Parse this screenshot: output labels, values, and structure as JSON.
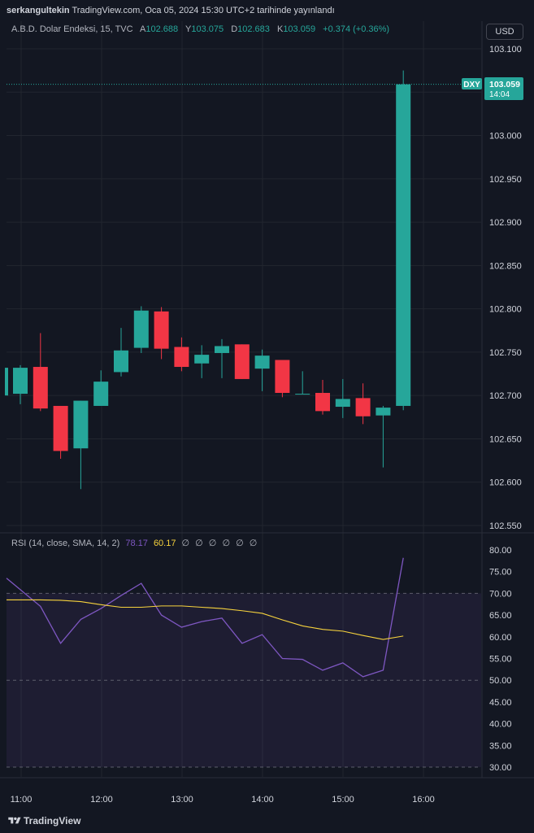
{
  "header": {
    "author": "serkangultekin",
    "text": "TradingView.com, Oca 05, 2024 15:30 UTC+2 tarihinde yayınlandı"
  },
  "legend": {
    "symbol": "A.B.D. Dolar Endeksi, 15, TVC",
    "o_label": "A",
    "o_value": "102.688",
    "h_label": "Y",
    "h_value": "103.075",
    "l_label": "D",
    "l_value": "102.683",
    "c_label": "K",
    "c_value": "103.059",
    "change": "+0.374 (+0.36%)"
  },
  "currency_button": "USD",
  "price_tag": {
    "ticker": "DXY",
    "price": "103.059",
    "countdown": "14:04"
  },
  "rsi_legend": {
    "label": "RSI (14, close, SMA, 14, 2)",
    "rsi_value": "78.17",
    "sma_value": "60.17",
    "na_values": "∅ ∅ ∅ ∅ ∅ ∅"
  },
  "footer": {
    "brand": "TradingView"
  },
  "colors": {
    "up": "#26a69a",
    "down": "#f23645",
    "rsi": "#7e57c2",
    "sma": "#f7d33d",
    "background": "#131722",
    "grid": "#22262f"
  },
  "chart_data": {
    "type": "candlestick",
    "price_ticks": [
      "102.550",
      "102.600",
      "102.650",
      "102.700",
      "102.750",
      "102.800",
      "102.850",
      "102.900",
      "102.950",
      "103.000",
      "103.050",
      "103.100"
    ],
    "price_range": [
      102.545,
      103.11
    ],
    "time_ticks": [
      "11:00",
      "12:00",
      "13:00",
      "14:00",
      "15:00",
      "16:00"
    ],
    "candles": [
      {
        "o": 102.702,
        "h": 102.735,
        "l": 102.69,
        "c": 102.732
      },
      {
        "o": 102.733,
        "h": 102.772,
        "l": 102.682,
        "c": 102.685
      },
      {
        "o": 102.688,
        "h": 102.688,
        "l": 102.627,
        "c": 102.636
      },
      {
        "o": 102.639,
        "h": 102.694,
        "l": 102.592,
        "c": 102.694
      },
      {
        "o": 102.688,
        "h": 102.729,
        "l": 102.688,
        "c": 102.716
      },
      {
        "o": 102.727,
        "h": 102.778,
        "l": 102.722,
        "c": 102.752
      },
      {
        "o": 102.755,
        "h": 102.803,
        "l": 102.749,
        "c": 102.798
      },
      {
        "o": 102.797,
        "h": 102.802,
        "l": 102.742,
        "c": 102.754
      },
      {
        "o": 102.756,
        "h": 102.767,
        "l": 102.728,
        "c": 102.733
      },
      {
        "o": 102.737,
        "h": 102.758,
        "l": 102.72,
        "c": 102.747
      },
      {
        "o": 102.749,
        "h": 102.765,
        "l": 102.72,
        "c": 102.757
      },
      {
        "o": 102.759,
        "h": 102.759,
        "l": 102.719,
        "c": 102.719
      },
      {
        "o": 102.731,
        "h": 102.753,
        "l": 102.705,
        "c": 102.746
      },
      {
        "o": 102.741,
        "h": 102.741,
        "l": 102.698,
        "c": 102.703
      },
      {
        "o": 102.702,
        "h": 102.728,
        "l": 102.702,
        "c": 102.702
      },
      {
        "o": 102.703,
        "h": 102.718,
        "l": 102.678,
        "c": 102.682
      },
      {
        "o": 102.687,
        "h": 102.719,
        "l": 102.674,
        "c": 102.696
      },
      {
        "o": 102.697,
        "h": 102.714,
        "l": 102.667,
        "c": 102.676
      },
      {
        "o": 102.677,
        "h": 102.688,
        "l": 102.617,
        "c": 102.686
      },
      {
        "o": 102.688,
        "h": 103.075,
        "l": 102.683,
        "c": 103.059
      }
    ],
    "rsi": {
      "name": "RSI (14, close, SMA, 14, 2)",
      "ticks": [
        "30.00",
        "35.00",
        "40.00",
        "45.00",
        "50.00",
        "55.00",
        "60.00",
        "65.00",
        "70.00",
        "75.00",
        "80.00"
      ],
      "range": [
        29.0,
        81.5
      ],
      "band": [
        30,
        70
      ],
      "midline": 50,
      "rsi_values": [
        73.5,
        67.0,
        58.5,
        64.0,
        66.5,
        69.5,
        72.3,
        65.0,
        62.2,
        63.5,
        64.3,
        58.5,
        60.5,
        55.0,
        54.8,
        52.3,
        54.0,
        50.8,
        52.3,
        78.17
      ],
      "sma_values": [
        68.5,
        68.5,
        68.4,
        68.1,
        67.4,
        66.8,
        66.8,
        67.1,
        67.1,
        66.8,
        66.5,
        66.0,
        65.4,
        63.9,
        62.5,
        61.7,
        61.3,
        60.3,
        59.4,
        60.17
      ]
    }
  }
}
